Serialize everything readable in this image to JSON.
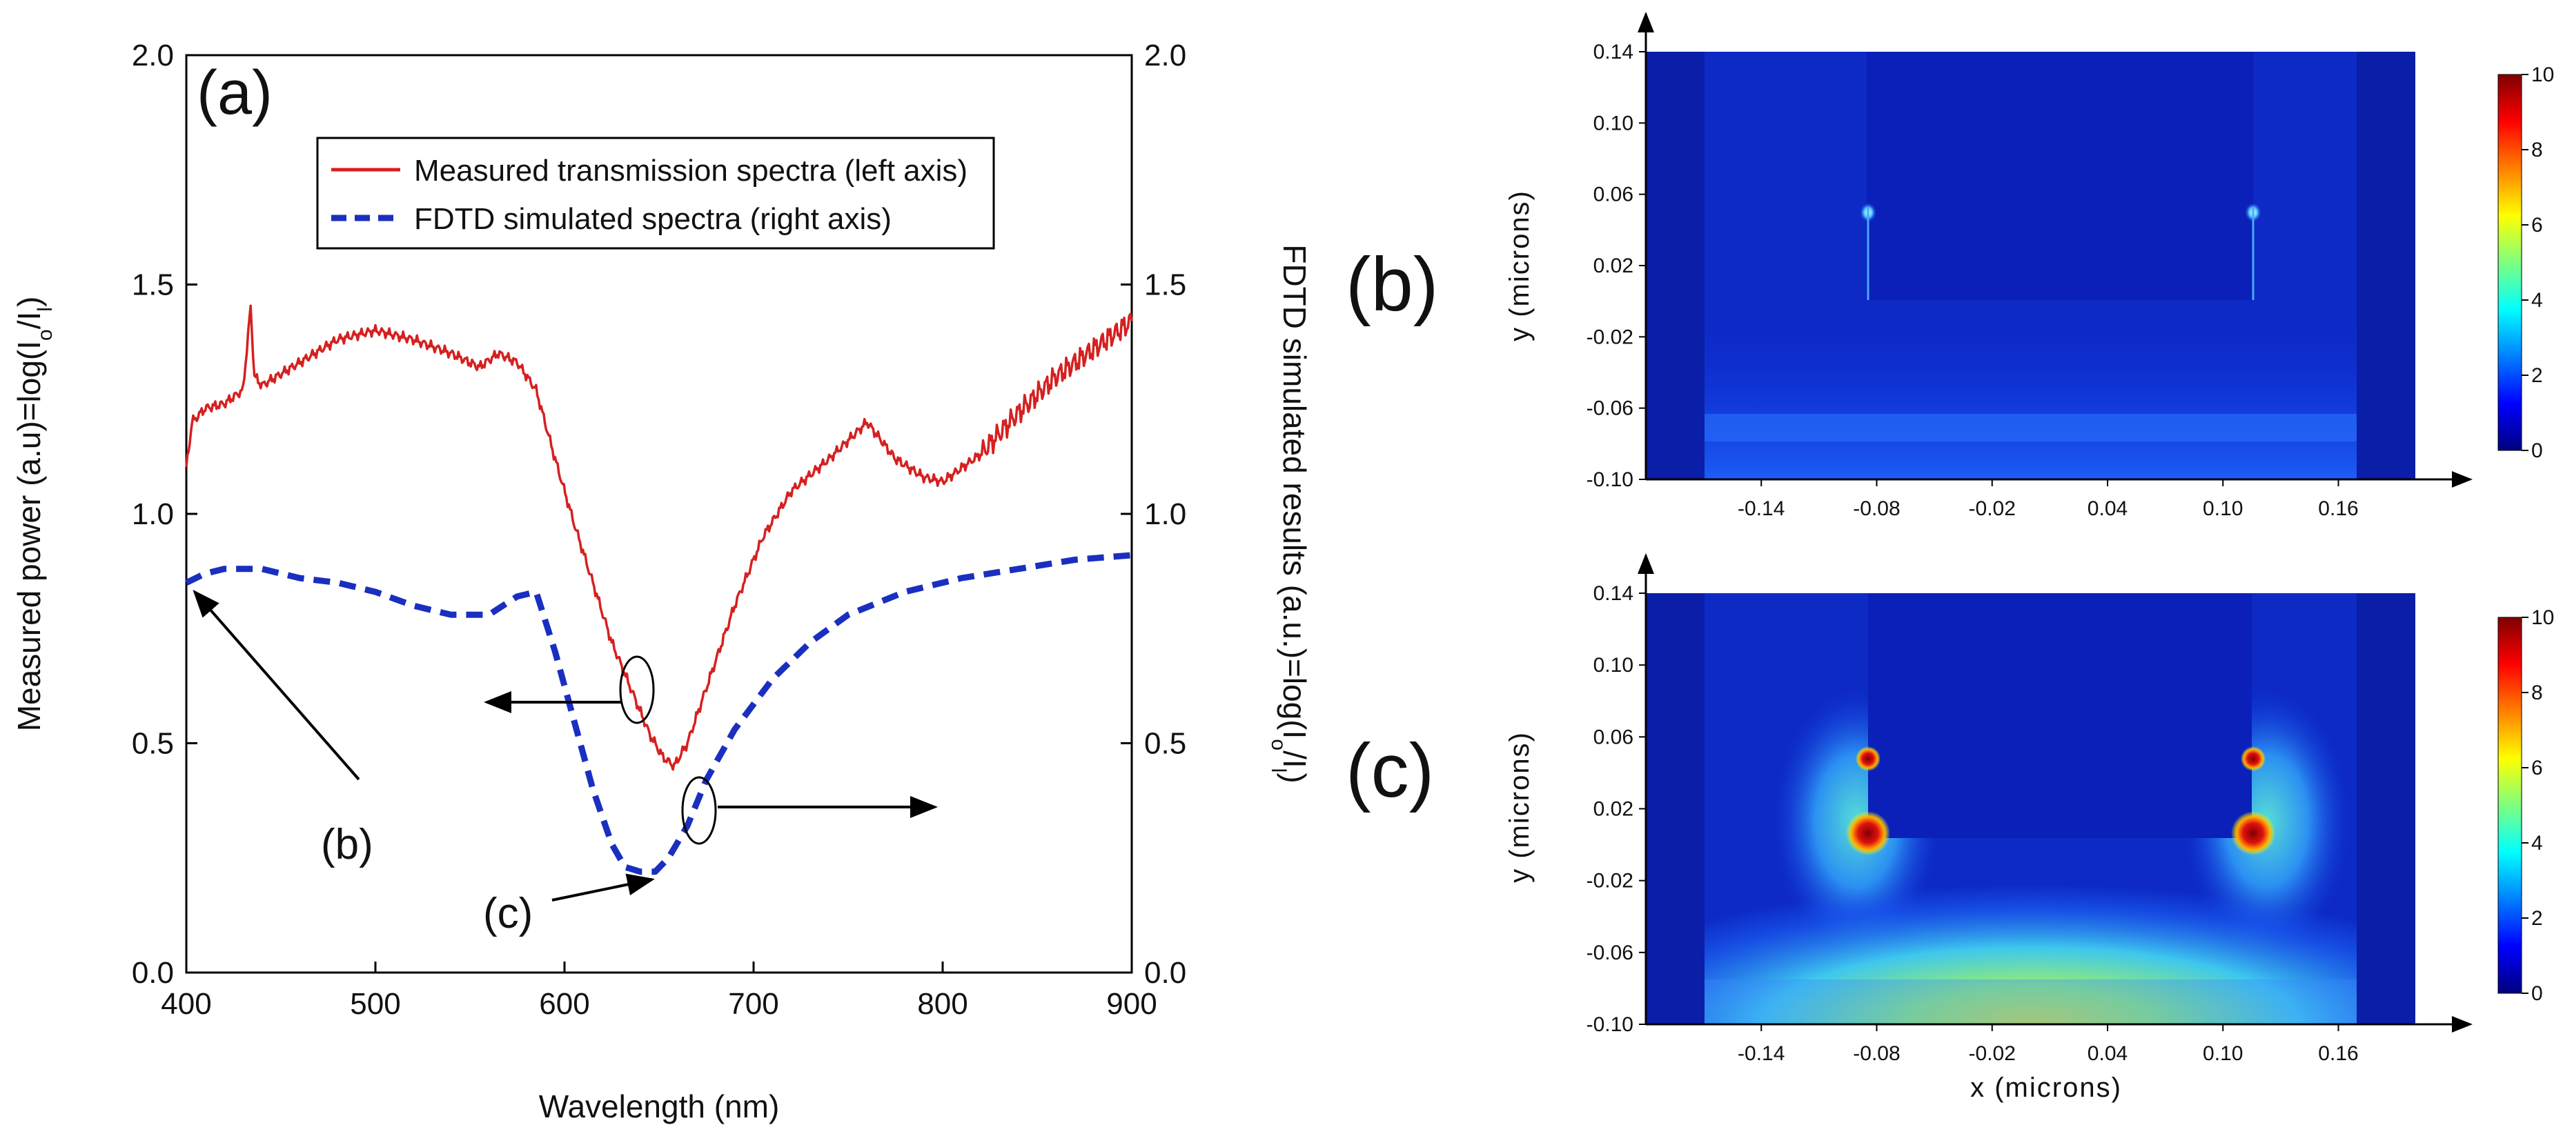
{
  "chart_data": [
    {
      "type": "line",
      "panel": "(a)",
      "xlabel": "Wavelength (nm)",
      "ylabel_left": "Measured power (a.u)=log(I",
      "ylabel_left_sub1": "o",
      "ylabel_left_mid": "/I",
      "ylabel_left_sub2": "l",
      "ylabel_left_end": ")",
      "ylabel_right": "FDTD simulated results (a.u.)=log(I",
      "ylabel_right_sub1": "o",
      "ylabel_right_mid": "/I",
      "ylabel_right_sub2": "l",
      "ylabel_right_end": ")",
      "xlim": [
        400,
        900
      ],
      "ylim_left": [
        0,
        2
      ],
      "ylim_right": [
        0,
        2
      ],
      "x_ticks": [
        "400",
        "500",
        "600",
        "700",
        "800",
        "900"
      ],
      "y_ticks_left": [
        "0.0",
        "0.5",
        "1.0",
        "1.5",
        "2.0"
      ],
      "y_ticks_right": [
        "0.0",
        "0.5",
        "1.0",
        "1.5",
        "2.0"
      ],
      "legend": {
        "placement": "top-center",
        "entries": [
          "Measured transmission spectra (left axis)",
          "FDTD simulated spectra (right axis)"
        ]
      },
      "series": [
        {
          "name": "Measured transmission spectra (left axis)",
          "axis": "left",
          "color": "#d62020",
          "style": "solid",
          "x": [
            400,
            403,
            410,
            420,
            430,
            434,
            436,
            440,
            460,
            480,
            500,
            520,
            540,
            555,
            565,
            575,
            585,
            595,
            605,
            615,
            625,
            635,
            645,
            652,
            658,
            665,
            675,
            690,
            705,
            720,
            740,
            760,
            775,
            790,
            800,
            820,
            840,
            860,
            880,
            900
          ],
          "y": [
            1.1,
            1.2,
            1.23,
            1.24,
            1.27,
            1.45,
            1.3,
            1.28,
            1.33,
            1.38,
            1.4,
            1.38,
            1.35,
            1.32,
            1.35,
            1.33,
            1.27,
            1.12,
            0.98,
            0.85,
            0.72,
            0.62,
            0.52,
            0.47,
            0.45,
            0.5,
            0.62,
            0.8,
            0.95,
            1.05,
            1.12,
            1.2,
            1.12,
            1.08,
            1.07,
            1.13,
            1.22,
            1.3,
            1.36,
            1.42
          ]
        },
        {
          "name": "FDTD simulated spectra (right axis)",
          "axis": "right",
          "color": "#1a2fc0",
          "style": "dashed",
          "x": [
            400,
            410,
            420,
            440,
            460,
            480,
            500,
            520,
            540,
            560,
            575,
            585,
            595,
            605,
            615,
            625,
            632,
            640,
            648,
            655,
            665,
            675,
            690,
            710,
            730,
            750,
            780,
            810,
            840,
            870,
            900
          ],
          "y": [
            0.85,
            0.87,
            0.88,
            0.88,
            0.86,
            0.85,
            0.83,
            0.8,
            0.78,
            0.78,
            0.82,
            0.83,
            0.7,
            0.55,
            0.4,
            0.28,
            0.23,
            0.22,
            0.22,
            0.25,
            0.32,
            0.42,
            0.53,
            0.64,
            0.72,
            0.78,
            0.83,
            0.86,
            0.88,
            0.9,
            0.91
          ]
        }
      ],
      "annotations": [
        {
          "text": "(b)",
          "points_to": {
            "x": 400,
            "y": 0.85
          }
        },
        {
          "text": "(c)",
          "points_to": {
            "x": 640,
            "y": 0.22
          }
        }
      ]
    },
    {
      "type": "heatmap",
      "panel": "(b)",
      "xlabel": "",
      "ylabel": "y  (microns)",
      "x_ticks": [
        "-0.14",
        "-0.08",
        "-0.02",
        "0.04",
        "0.10",
        "0.16"
      ],
      "y_ticks": [
        "0.14",
        "0.10",
        "0.06",
        "0.02",
        "-0.02",
        "-0.06",
        "-0.10"
      ],
      "colorbar": {
        "min": 0,
        "max": 10,
        "ticks": [
          "0",
          "2",
          "4",
          "6",
          "8",
          "10"
        ],
        "colormap": "jet"
      }
    },
    {
      "type": "heatmap",
      "panel": "(c)",
      "xlabel": "x  (microns)",
      "ylabel": "y  (microns)",
      "x_ticks": [
        "-0.14",
        "-0.08",
        "-0.02",
        "0.04",
        "0.10",
        "0.16"
      ],
      "y_ticks": [
        "0.14",
        "0.10",
        "0.06",
        "0.02",
        "-0.02",
        "-0.06",
        "-0.10"
      ],
      "colorbar": {
        "min": 0,
        "max": 10,
        "ticks": [
          "0",
          "2",
          "4",
          "6",
          "8",
          "10"
        ],
        "colormap": "jet"
      }
    }
  ]
}
